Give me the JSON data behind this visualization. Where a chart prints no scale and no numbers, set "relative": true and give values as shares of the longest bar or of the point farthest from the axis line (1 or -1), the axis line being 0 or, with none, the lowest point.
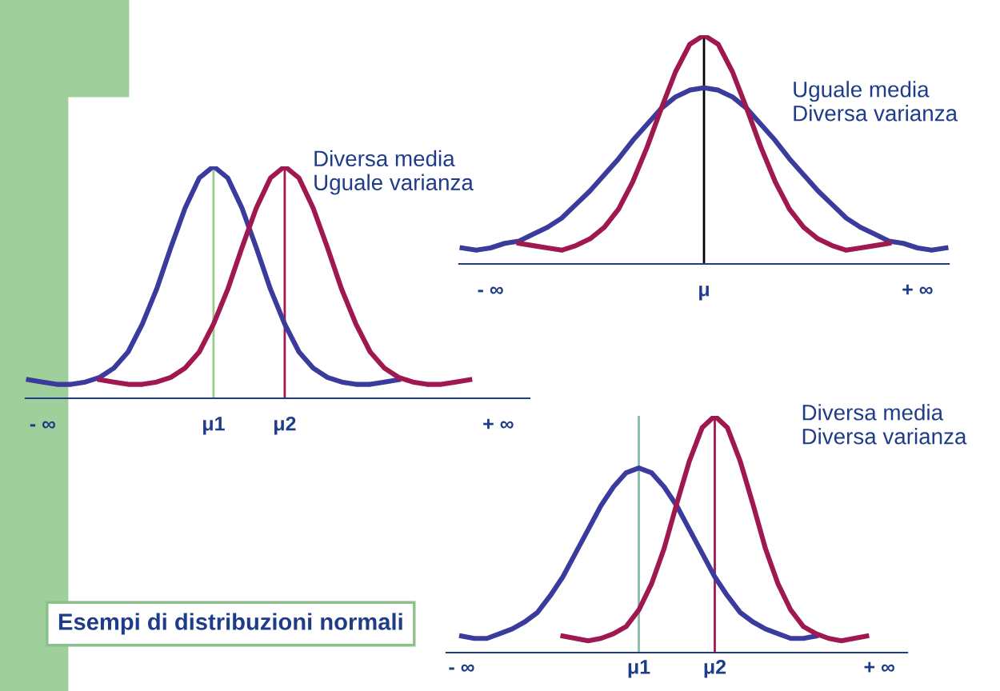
{
  "chart_data": [
    {
      "type": "line",
      "relative": true,
      "title": "Diversa media\nUguale varianza",
      "annotations": [
        "Esempi di distribuzioni normali"
      ],
      "categories": [
        null,
        "- ∞",
        null,
        null,
        null,
        null,
        null,
        null,
        null,
        null,
        null,
        null,
        null,
        "μ1",
        null,
        null,
        null,
        null,
        "μ2",
        null,
        null,
        null,
        null,
        null,
        null,
        null,
        null,
        null,
        null,
        null,
        null,
        null,
        null,
        "+ ∞",
        null,
        null
      ],
      "series": [
        {
          "color": "#3b3b9e",
          "values": [
            0.08,
            0.07,
            0.06,
            0.06,
            0.07,
            0.09,
            0.13,
            0.2,
            0.32,
            0.47,
            0.65,
            0.82,
            0.95,
            1,
            0.95,
            0.82,
            0.65,
            0.47,
            0.32,
            0.2,
            0.13,
            0.09,
            0.07,
            0.06,
            0.06,
            0.07,
            0.08,
            null,
            null,
            null,
            null,
            null,
            null,
            null,
            null,
            null
          ]
        },
        {
          "color": "#a01850",
          "values": [
            null,
            null,
            null,
            null,
            null,
            0.08,
            0.07,
            0.06,
            0.06,
            0.07,
            0.09,
            0.13,
            0.2,
            0.32,
            0.47,
            0.65,
            0.82,
            0.95,
            1,
            0.95,
            0.82,
            0.65,
            0.47,
            0.32,
            0.2,
            0.13,
            0.09,
            0.07,
            0.06,
            0.06,
            0.07,
            0.08,
            null,
            null,
            null,
            null
          ]
        }
      ],
      "ref_lines": [
        {
          "axis": "x",
          "value": "μ1",
          "color": "#99cc88"
        },
        {
          "axis": "x",
          "value": "μ2",
          "color": "#a01850"
        }
      ]
    },
    {
      "type": "line",
      "relative": true,
      "title": "Uguale media\nDiversa varianza",
      "categories": [
        null,
        null,
        "- ∞",
        null,
        null,
        null,
        null,
        null,
        null,
        null,
        null,
        null,
        null,
        null,
        null,
        null,
        null,
        "μ",
        null,
        null,
        null,
        null,
        null,
        null,
        null,
        null,
        null,
        null,
        null,
        null,
        null,
        null,
        "+ ∞",
        null,
        null
      ],
      "series": [
        {
          "color": "#3b3b9e",
          "values": [
            0.07,
            0.06,
            0.07,
            0.09,
            0.1,
            0.13,
            0.16,
            0.2,
            0.26,
            0.32,
            0.39,
            0.46,
            0.54,
            0.61,
            0.68,
            0.73,
            0.76,
            0.77,
            0.76,
            0.73,
            0.68,
            0.61,
            0.54,
            0.46,
            0.39,
            0.32,
            0.26,
            0.2,
            0.16,
            0.13,
            0.1,
            0.09,
            0.07,
            0.06,
            0.07
          ]
        },
        {
          "color": "#a01850",
          "values": [
            null,
            null,
            null,
            null,
            0.09,
            0.08,
            0.07,
            0.06,
            0.08,
            0.11,
            0.16,
            0.24,
            0.36,
            0.51,
            0.68,
            0.84,
            0.96,
            1,
            0.96,
            0.84,
            0.68,
            0.51,
            0.36,
            0.24,
            0.16,
            0.11,
            0.08,
            0.06,
            0.07,
            0.08,
            0.09,
            null,
            null,
            null,
            null
          ]
        }
      ],
      "ref_lines": [
        {
          "axis": "x",
          "value": "μ",
          "color": "#000000"
        }
      ]
    },
    {
      "type": "line",
      "relative": true,
      "title": "Diversa media\nDiversa varianza",
      "categories": [
        null,
        "- ∞",
        null,
        null,
        null,
        null,
        null,
        null,
        null,
        null,
        null,
        null,
        null,
        null,
        null,
        "μ1",
        null,
        null,
        null,
        null,
        null,
        "μ2",
        null,
        null,
        null,
        null,
        null,
        null,
        null,
        null,
        null,
        null,
        null,
        null,
        "+ ∞",
        null,
        null
      ],
      "series": [
        {
          "color": "#3b3b9e",
          "values": [
            null,
            0.07,
            0.06,
            0.06,
            0.08,
            0.1,
            0.13,
            0.17,
            0.24,
            0.32,
            0.42,
            0.52,
            0.62,
            0.7,
            0.76,
            0.78,
            0.76,
            0.7,
            0.62,
            0.52,
            0.42,
            0.32,
            0.24,
            0.17,
            0.13,
            0.1,
            0.08,
            0.06,
            0.06,
            0.07,
            null,
            null,
            null,
            null,
            null,
            null,
            null
          ]
        },
        {
          "color": "#a01850",
          "values": [
            null,
            null,
            null,
            null,
            null,
            null,
            null,
            null,
            null,
            0.07,
            0.06,
            0.05,
            0.06,
            0.08,
            0.11,
            0.18,
            0.29,
            0.44,
            0.63,
            0.81,
            0.95,
            1,
            0.95,
            0.81,
            0.63,
            0.44,
            0.29,
            0.18,
            0.11,
            0.08,
            0.06,
            0.05,
            0.06,
            0.07,
            null,
            null,
            null
          ]
        }
      ],
      "ref_lines": [
        {
          "axis": "x",
          "value": "μ1",
          "color": "#88bbaa"
        },
        {
          "axis": "x",
          "value": "μ2",
          "color": "#a01850"
        }
      ]
    }
  ]
}
